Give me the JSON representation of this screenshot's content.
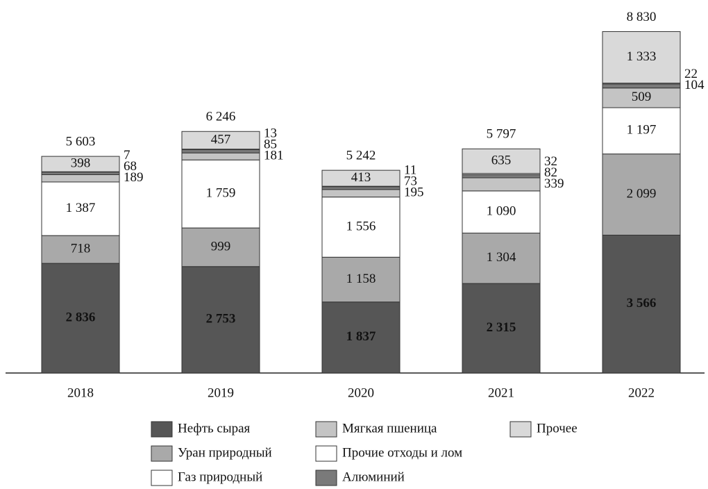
{
  "chart_data": {
    "type": "stacked_bar",
    "categories": [
      "2018",
      "2019",
      "2020",
      "2021",
      "2022"
    ],
    "series": [
      {
        "name": "Нефть сырая",
        "color": "#565656",
        "values": [
          2836,
          2753,
          1837,
          2315,
          3566
        ],
        "value_labels": [
          "2 836",
          "2 753",
          "1 837",
          "2 315",
          "3 566"
        ]
      },
      {
        "name": "Уран природный",
        "color": "#a9a9a9",
        "values": [
          718,
          999,
          1158,
          1304,
          2099
        ],
        "value_labels": [
          "718",
          "999",
          "1 158",
          "1 304",
          "2 099"
        ]
      },
      {
        "name": "Газ природный",
        "color": "#ffffff",
        "values": [
          1387,
          1759,
          1556,
          1090,
          1197
        ],
        "value_labels": [
          "1 387",
          "1 759",
          "1 556",
          "1 090",
          "1 197"
        ]
      },
      {
        "name": "Мягкая пшеница",
        "color": "#c4c4c4",
        "values": [
          189,
          181,
          195,
          339,
          509
        ],
        "value_labels": [
          "189",
          "181",
          "195",
          "339",
          "509"
        ]
      },
      {
        "name": "Алюминий",
        "color": "#7a7a7a",
        "values": [
          68,
          85,
          73,
          82,
          104
        ],
        "value_labels": [
          "68",
          "85",
          "73",
          "82",
          "104"
        ]
      },
      {
        "name": "Прочие отходы и лом",
        "color": "#ffffff",
        "values": [
          7,
          13,
          11,
          32,
          22
        ],
        "value_labels": [
          "7",
          "13",
          "11",
          "32",
          "22"
        ]
      },
      {
        "name": "Прочее",
        "color": "#d9d9d9",
        "values": [
          398,
          457,
          413,
          635,
          1333
        ],
        "value_labels": [
          "398",
          "457",
          "413",
          "635",
          "1 333"
        ]
      }
    ],
    "totals": [
      5603,
      6246,
      5242,
      5797,
      8830
    ],
    "total_labels": [
      "5 603",
      "6 246",
      "5 242",
      "5 797",
      "8 830"
    ],
    "ylim": [
      0,
      9000
    ]
  }
}
